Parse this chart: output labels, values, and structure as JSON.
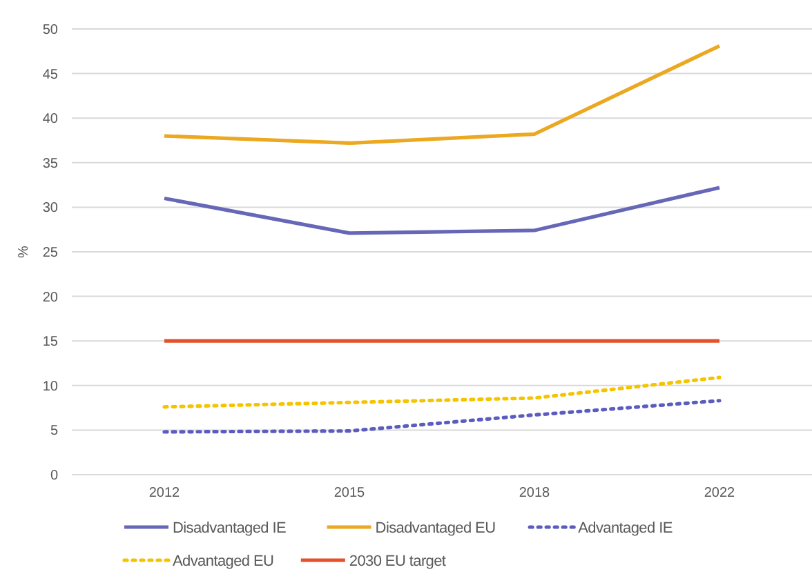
{
  "chart_data": {
    "type": "line",
    "ylabel": "%",
    "categories": [
      "2012",
      "2015",
      "2018",
      "2022"
    ],
    "ylim": [
      0,
      50
    ],
    "yticks": [
      0,
      5,
      10,
      15,
      20,
      25,
      30,
      35,
      40,
      45,
      50
    ],
    "grid": "y",
    "legend": "bottom",
    "series": [
      {
        "name": "Disadvantaged IE",
        "color": "#6767b8",
        "line_style": "solid",
        "values": [
          31,
          27.1,
          27.4,
          32.2
        ]
      },
      {
        "name": "Disadvantaged EU",
        "color": "#eba820",
        "line_style": "solid",
        "values": [
          38,
          37.2,
          38.2,
          48.1
        ]
      },
      {
        "name": "Advantaged IE",
        "color": "#5c5cc0",
        "line_style": "dotted",
        "values": [
          4.8,
          4.9,
          6.7,
          8.3
        ]
      },
      {
        "name": "Advantaged EU",
        "color": "#f5c400",
        "line_style": "dotted",
        "values": [
          7.6,
          8.1,
          8.6,
          10.9
        ]
      },
      {
        "name": "2030 EU target",
        "color": "#e4502a",
        "line_style": "solid",
        "values": [
          15,
          15,
          15,
          15
        ]
      }
    ]
  }
}
